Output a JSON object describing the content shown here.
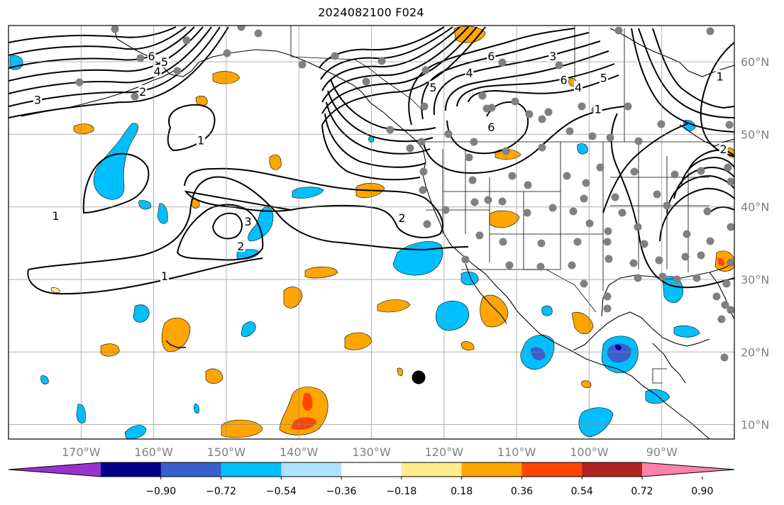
{
  "title": "2024082100 F024",
  "map": {
    "projection": "PlateCarree",
    "lon_range": [
      -180,
      -80
    ],
    "lat_range": [
      8,
      65
    ],
    "lon_ticks": [
      {
        "value": -170,
        "label": "170°W"
      },
      {
        "value": -160,
        "label": "160°W"
      },
      {
        "value": -150,
        "label": "150°W"
      },
      {
        "value": -140,
        "label": "140°W"
      },
      {
        "value": -130,
        "label": "130°W"
      },
      {
        "value": -120,
        "label": "120°W"
      },
      {
        "value": -110,
        "label": "110°W"
      },
      {
        "value": -100,
        "label": "100°W"
      },
      {
        "value": -90,
        "label": "90°W"
      }
    ],
    "lat_ticks": [
      {
        "value": 10,
        "label": "10°N"
      },
      {
        "value": 20,
        "label": "20°N"
      },
      {
        "value": 30,
        "label": "30°N"
      },
      {
        "value": 40,
        "label": "40°N"
      },
      {
        "value": 50,
        "label": "50°N"
      },
      {
        "value": 60,
        "label": "60°N"
      }
    ],
    "gridlines": true,
    "storm_marker": {
      "lon": -123.5,
      "lat": 16.5
    }
  },
  "colorbar": {
    "colors": [
      "#9932cc",
      "#00008b",
      "#3a5fcd",
      "#00bfff",
      "#b0e2ff",
      "#ffffff",
      "#ffec8b",
      "#ffa500",
      "#ff4500",
      "#b22222",
      "#ff82ab"
    ],
    "ticks": [
      "−0.90",
      "−0.72",
      "−0.54",
      "−0.36",
      "−0.18",
      "0.18",
      "0.36",
      "0.54",
      "0.72",
      "0.90"
    ]
  },
  "contour_labels": [
    {
      "text": "6",
      "lon": -160.3,
      "lat": 60.8
    },
    {
      "text": "5",
      "lon": -158.5,
      "lat": 60.0
    },
    {
      "text": "4",
      "lon": -159.5,
      "lat": 58.7
    },
    {
      "text": "2",
      "lon": -161.5,
      "lat": 55.9
    },
    {
      "text": "3",
      "lon": -176.0,
      "lat": 54.8
    },
    {
      "text": "1",
      "lon": -153.5,
      "lat": 49.2
    },
    {
      "text": "1",
      "lon": -173.5,
      "lat": 38.8
    },
    {
      "text": "2",
      "lon": -148.0,
      "lat": 34.6
    },
    {
      "text": "3",
      "lon": -147.0,
      "lat": 38.0
    },
    {
      "text": "1",
      "lon": -158.5,
      "lat": 30.5
    },
    {
      "text": "2",
      "lon": -125.8,
      "lat": 38.5
    },
    {
      "text": "5",
      "lon": -121.5,
      "lat": 56.5
    },
    {
      "text": "4",
      "lon": -116.5,
      "lat": 58.5
    },
    {
      "text": "6",
      "lon": -113.5,
      "lat": 60.8
    },
    {
      "text": "3",
      "lon": -105.0,
      "lat": 60.8
    },
    {
      "text": "6",
      "lon": -113.5,
      "lat": 51.0
    },
    {
      "text": "6",
      "lon": -103.5,
      "lat": 57.5
    },
    {
      "text": "4",
      "lon": -101.5,
      "lat": 56.5
    },
    {
      "text": "5",
      "lon": -98.0,
      "lat": 57.8
    },
    {
      "text": "1",
      "lon": -98.8,
      "lat": 53.5
    },
    {
      "text": "1",
      "lon": -82.0,
      "lat": 58.0
    },
    {
      "text": "2",
      "lon": -81.5,
      "lat": 48.0
    }
  ]
}
